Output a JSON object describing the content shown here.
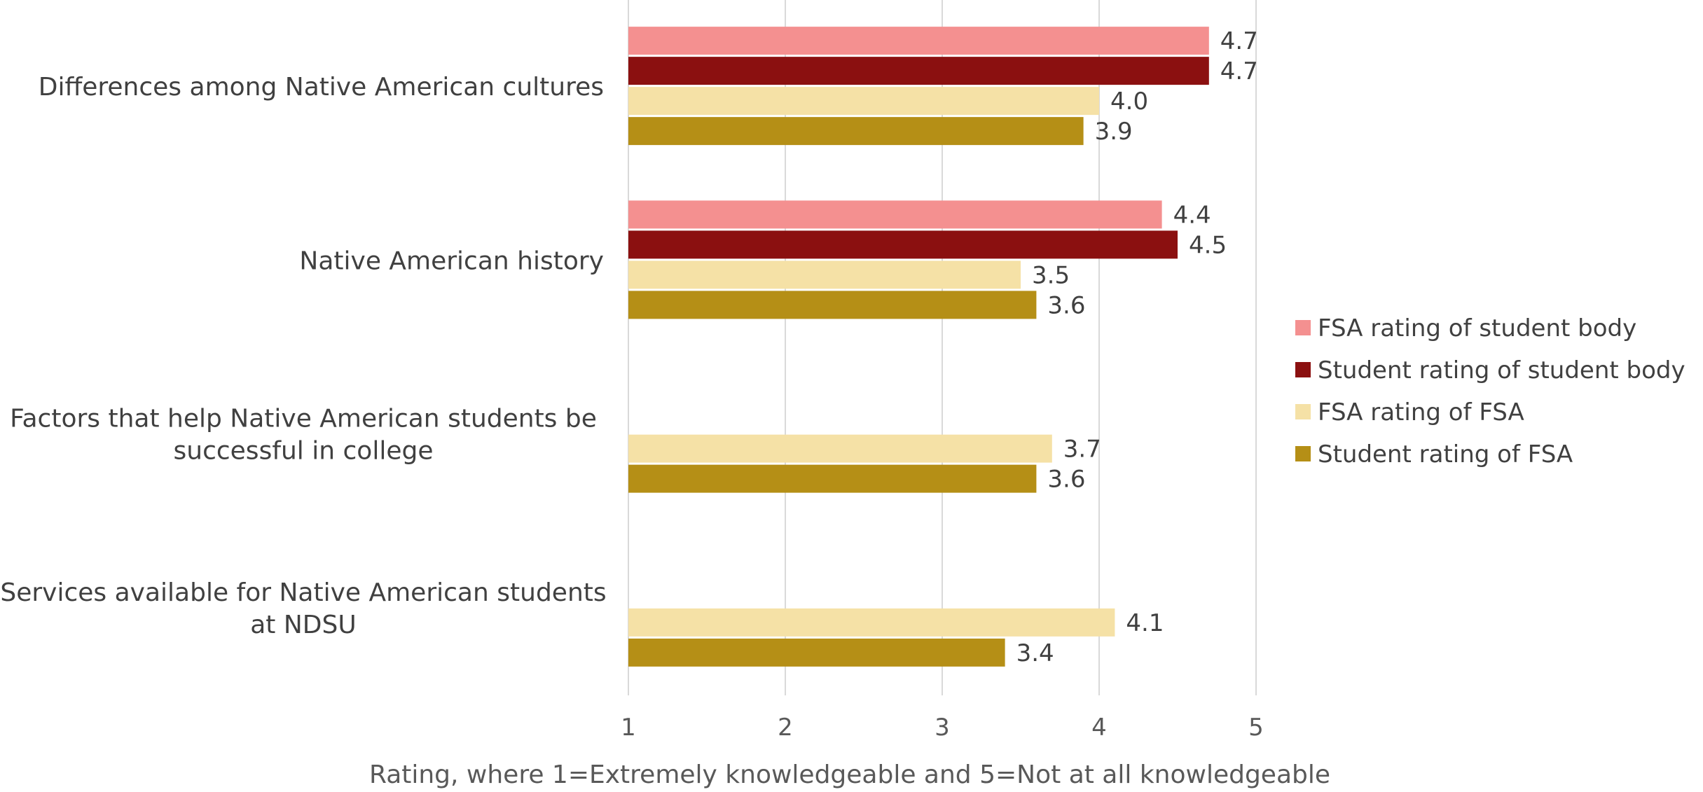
{
  "chart_data": {
    "type": "bar",
    "orientation": "horizontal",
    "categories": [
      [
        "Differences among Native American cultures"
      ],
      [
        "Native American history"
      ],
      [
        "Factors that help Native American students be",
        "successful in college"
      ],
      [
        "Services available for Native American students",
        "at NDSU"
      ]
    ],
    "series": [
      {
        "name": "FSA rating of student body",
        "color": "#f49090",
        "values": [
          4.7,
          4.4,
          null,
          null
        ],
        "labels": [
          "4.7",
          "4.4",
          "",
          ""
        ]
      },
      {
        "name": "Student rating of student body",
        "color": "#8b1010",
        "values": [
          4.7,
          4.5,
          null,
          null
        ],
        "labels": [
          "4.7",
          "4.5",
          "",
          ""
        ]
      },
      {
        "name": "FSA rating of FSA",
        "color": "#f5e1a6",
        "values": [
          4.0,
          3.5,
          3.7,
          4.1
        ],
        "labels": [
          "4.0",
          "3.5",
          "3.7",
          "4.1"
        ]
      },
      {
        "name": "Student rating of FSA",
        "color": "#b58f16",
        "values": [
          3.9,
          3.6,
          3.6,
          3.4
        ],
        "labels": [
          "3.9",
          "3.6",
          "3.6",
          "3.4"
        ]
      }
    ],
    "xlim": [
      1,
      5
    ],
    "xticks": [
      "1",
      "2",
      "3",
      "4",
      "5"
    ],
    "xlabel": "Rating, where 1=Extremely knowledgeable and 5=Not at all knowledgeable",
    "grid": "vertical",
    "legend_position": "right"
  }
}
